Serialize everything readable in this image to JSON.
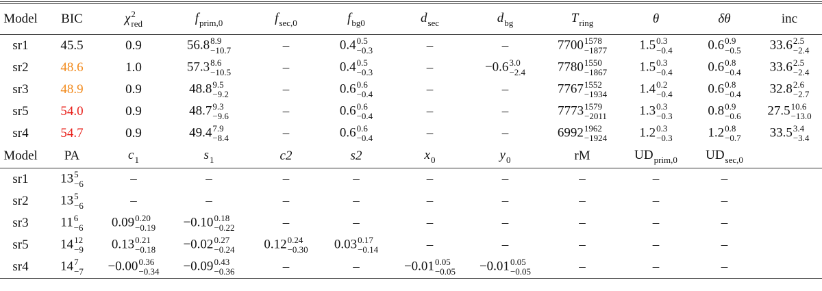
{
  "table1": {
    "header": [
      "Model",
      "BIC",
      {
        "v": "χ",
        "sup": "2",
        "sub": "red"
      },
      {
        "v": "f",
        "sub": "prim,0"
      },
      {
        "v": "f",
        "sub": "sec,0"
      },
      {
        "v": "f",
        "sub": "bg0"
      },
      {
        "v": "d",
        "sub": "sec"
      },
      {
        "v": "d",
        "sub": "bg"
      },
      {
        "v": "T",
        "sub": "ring"
      },
      "θ",
      "δθ",
      "inc"
    ],
    "rows": [
      [
        "sr1",
        "45.5",
        "0.9",
        {
          "v": "56.8",
          "sup": "8.9",
          "sub": "−10.7"
        },
        "–",
        {
          "v": "0.4",
          "sup": "0.5",
          "sub": "−0.3"
        },
        "–",
        "–",
        {
          "v": "7700",
          "sup": "1578",
          "sub": "−1877"
        },
        {
          "v": "1.5",
          "sup": "0.3",
          "sub": "−0.4"
        },
        {
          "v": "0.6",
          "sup": "0.9",
          "sub": "−0.5"
        },
        {
          "v": "33.6",
          "sup": "2.5",
          "sub": "−2.4"
        }
      ],
      [
        "sr2",
        {
          "v": "48.6",
          "color": "#f28a1c"
        },
        "1.0",
        {
          "v": "57.3",
          "sup": "8.6",
          "sub": "−10.5"
        },
        "–",
        {
          "v": "0.4",
          "sup": "0.5",
          "sub": "−0.3"
        },
        "–",
        {
          "v": "−0.6",
          "sup": "3.0",
          "sub": "−2.4"
        },
        {
          "v": "7780",
          "sup": "1550",
          "sub": "−1867"
        },
        {
          "v": "1.5",
          "sup": "0.3",
          "sub": "−0.4"
        },
        {
          "v": "0.6",
          "sup": "0.8",
          "sub": "−0.4"
        },
        {
          "v": "33.6",
          "sup": "2.5",
          "sub": "−2.4"
        }
      ],
      [
        "sr3",
        {
          "v": "48.9",
          "color": "#f28a1c"
        },
        "0.9",
        {
          "v": "48.8",
          "sup": "9.5",
          "sub": "−9.2"
        },
        "–",
        {
          "v": "0.6",
          "sup": "0.6",
          "sub": "−0.4"
        },
        "–",
        "–",
        {
          "v": "7767",
          "sup": "1552",
          "sub": "−1934"
        },
        {
          "v": "1.4",
          "sup": "0.2",
          "sub": "−0.4"
        },
        {
          "v": "0.6",
          "sup": "0.8",
          "sub": "−0.4"
        },
        {
          "v": "32.8",
          "sup": "2.6",
          "sub": "−2.7"
        }
      ],
      [
        "sr5",
        {
          "v": "54.0",
          "color": "#e8201a"
        },
        "0.9",
        {
          "v": "48.7",
          "sup": "9.3",
          "sub": "−9.6"
        },
        "–",
        {
          "v": "0.6",
          "sup": "0.6",
          "sub": "−0.4"
        },
        "–",
        "–",
        {
          "v": "7773",
          "sup": "1579",
          "sub": "−2011"
        },
        {
          "v": "1.3",
          "sup": "0.3",
          "sub": "−0.3"
        },
        {
          "v": "0.8",
          "sup": "0.9",
          "sub": "−0.6"
        },
        {
          "v": "27.5",
          "sup": "10.6",
          "sub": "−13.0"
        }
      ],
      [
        "sr4",
        {
          "v": "54.7",
          "color": "#e8201a"
        },
        "0.9",
        {
          "v": "49.4",
          "sup": "7.9",
          "sub": "−8.4"
        },
        "–",
        {
          "v": "0.6",
          "sup": "0.6",
          "sub": "−0.4"
        },
        "–",
        "–",
        {
          "v": "6992",
          "sup": "1962",
          "sub": "−1924"
        },
        {
          "v": "1.2",
          "sup": "0.3",
          "sub": "−0.3"
        },
        {
          "v": "1.2",
          "sup": "0.8",
          "sub": "−0.7"
        },
        {
          "v": "33.5",
          "sup": "3.4",
          "sub": "−3.4"
        }
      ]
    ]
  },
  "table2": {
    "header": [
      "Model",
      "PA",
      {
        "v": "c",
        "sub": "1"
      },
      {
        "v": "s",
        "sub": "1"
      },
      "c2",
      "s2",
      {
        "v": "x",
        "sub": "0"
      },
      {
        "v": "y",
        "sub": "0"
      },
      "rM",
      {
        "v": "UD",
        "sub": "prim,0"
      },
      {
        "v": "UD",
        "sub": "sec,0"
      }
    ],
    "rows": [
      [
        "sr1",
        {
          "v": "13",
          "sup": "5",
          "sub": "−6"
        },
        "–",
        "–",
        "–",
        "–",
        "–",
        "–",
        "–",
        "–",
        "–"
      ],
      [
        "sr2",
        {
          "v": "13",
          "sup": "5",
          "sub": "−6"
        },
        "–",
        "–",
        "–",
        "–",
        "–",
        "–",
        "–",
        "–",
        "–"
      ],
      [
        "sr3",
        {
          "v": "11",
          "sup": "6",
          "sub": "−6"
        },
        {
          "v": "0.09",
          "sup": "0.20",
          "sub": "−0.19"
        },
        {
          "v": "−0.10",
          "sup": "0.18",
          "sub": "−0.22"
        },
        "–",
        "–",
        "–",
        "–",
        "–",
        "–",
        "–"
      ],
      [
        "sr5",
        {
          "v": "14",
          "sup": "12",
          "sub": "−9"
        },
        {
          "v": "0.13",
          "sup": "0.21",
          "sub": "−0.18"
        },
        {
          "v": "−0.02",
          "sup": "0.27",
          "sub": "−0.24"
        },
        {
          "v": "0.12",
          "sup": "0.24",
          "sub": "−0.30"
        },
        {
          "v": "0.03",
          "sup": "0.17",
          "sub": "−0.14"
        },
        "–",
        "–",
        "–",
        "–",
        "–"
      ],
      [
        "sr4",
        {
          "v": "14",
          "sup": "7",
          "sub": "−7"
        },
        {
          "v": "−0.00",
          "sup": "0.36",
          "sub": "−0.34"
        },
        {
          "v": "−0.09",
          "sup": "0.43",
          "sub": "−0.36"
        },
        "–",
        "–",
        {
          "v": "−0.01",
          "sup": "0.05",
          "sub": "−0.05"
        },
        {
          "v": "−0.01",
          "sup": "0.05",
          "sub": "−0.05"
        },
        "–",
        "–",
        "–"
      ]
    ]
  }
}
